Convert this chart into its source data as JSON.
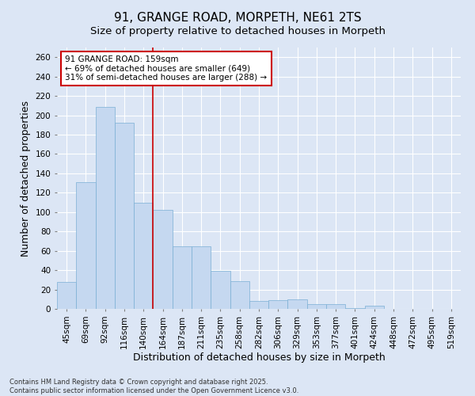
{
  "title": "91, GRANGE ROAD, MORPETH, NE61 2TS",
  "subtitle": "Size of property relative to detached houses in Morpeth",
  "xlabel": "Distribution of detached houses by size in Morpeth",
  "ylabel": "Number of detached properties",
  "categories": [
    "45sqm",
    "69sqm",
    "92sqm",
    "116sqm",
    "140sqm",
    "164sqm",
    "187sqm",
    "211sqm",
    "235sqm",
    "258sqm",
    "282sqm",
    "306sqm",
    "329sqm",
    "353sqm",
    "377sqm",
    "401sqm",
    "424sqm",
    "448sqm",
    "472sqm",
    "495sqm",
    "519sqm"
  ],
  "values": [
    28,
    131,
    209,
    192,
    110,
    102,
    65,
    65,
    39,
    29,
    8,
    9,
    10,
    5,
    5,
    1,
    3,
    0,
    0,
    0,
    0
  ],
  "bar_color": "#c5d8f0",
  "bar_edge_color": "#7bafd4",
  "vline_x": 4.5,
  "vline_color": "#cc0000",
  "annotation_text": "91 GRANGE ROAD: 159sqm\n← 69% of detached houses are smaller (649)\n31% of semi-detached houses are larger (288) →",
  "annotation_box_facecolor": "#ffffff",
  "annotation_box_edgecolor": "#cc0000",
  "ylim": [
    0,
    270
  ],
  "yticks": [
    0,
    20,
    40,
    60,
    80,
    100,
    120,
    140,
    160,
    180,
    200,
    220,
    240,
    260
  ],
  "background_color": "#dce6f5",
  "plot_background": "#dce6f5",
  "footer": "Contains HM Land Registry data © Crown copyright and database right 2025.\nContains public sector information licensed under the Open Government Licence v3.0.",
  "title_fontsize": 11,
  "subtitle_fontsize": 9.5,
  "tick_fontsize": 7.5,
  "label_fontsize": 9,
  "annotation_fontsize": 7.5,
  "footer_fontsize": 6
}
